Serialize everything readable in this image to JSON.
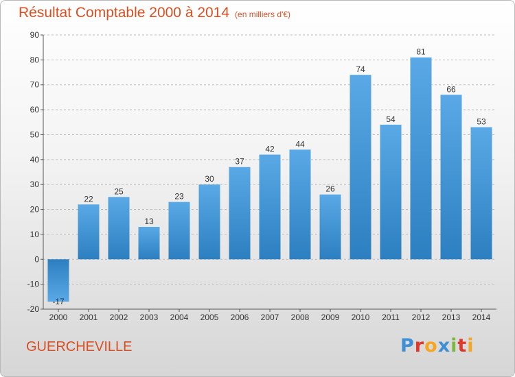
{
  "header": {
    "title": "Résultat Comptable 2000 à 2014",
    "subtitle": "(en milliers d'€)"
  },
  "footer": {
    "commune": "GUERCHEVILLE",
    "logo_text": "Proxiti"
  },
  "colors": {
    "title": "#d94f22",
    "bar_top": "#5aa9e6",
    "bar_bottom": "#2c7fc0",
    "neg_bar_top": "#2c7fc0",
    "neg_bar_bottom": "#5aa9e6"
  },
  "chart_data": {
    "type": "bar",
    "title": "Résultat Comptable 2000 à 2014",
    "subtitle": "(en milliers d'€)",
    "categories": [
      "2000",
      "2001",
      "2002",
      "2003",
      "2004",
      "2005",
      "2006",
      "2007",
      "2008",
      "2009",
      "2010",
      "2011",
      "2012",
      "2013",
      "2014"
    ],
    "values": [
      -17,
      22,
      25,
      13,
      23,
      30,
      37,
      42,
      44,
      26,
      74,
      54,
      81,
      66,
      53
    ],
    "ylim": [
      -20,
      90
    ],
    "yticks": [
      -20,
      -10,
      0,
      10,
      20,
      30,
      40,
      50,
      60,
      70,
      80,
      90
    ],
    "grid": true,
    "data_labels": true
  }
}
